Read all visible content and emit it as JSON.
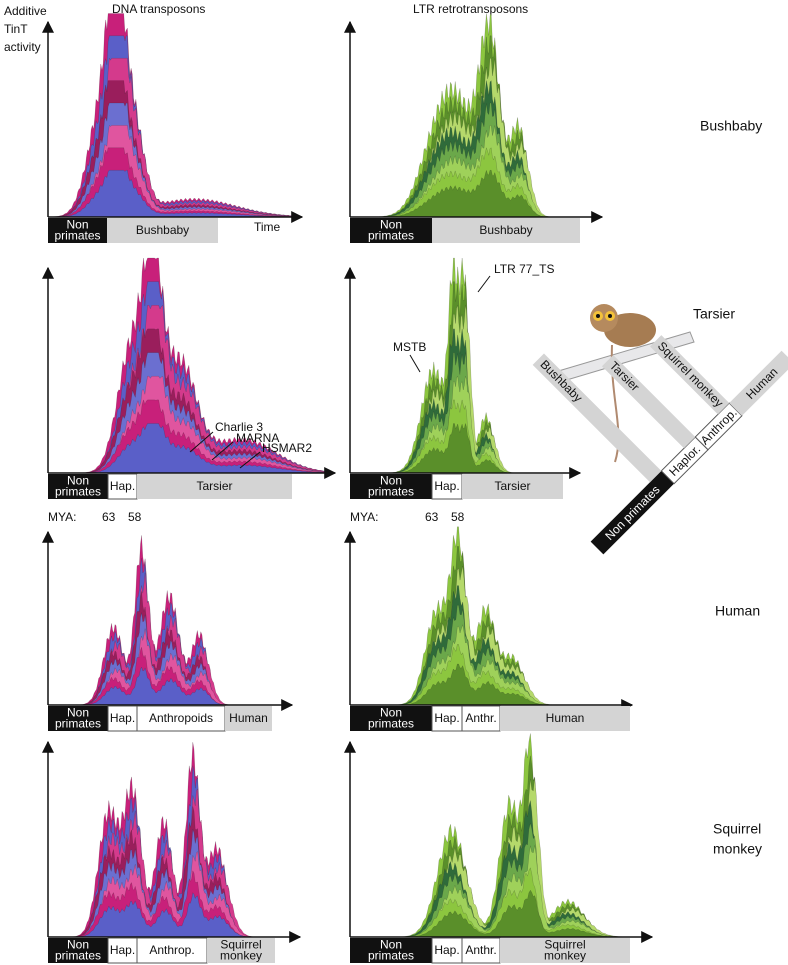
{
  "y_axis_label": [
    "Additive",
    "TinT",
    "activity"
  ],
  "column_titles": [
    "DNA transposons",
    "LTR retrotransposons"
  ],
  "x_axis_label": "Time",
  "rows": [
    {
      "species": [
        "Bushbaby"
      ],
      "dna": [
        [
          "Non",
          "primates"
        ],
        [
          "Bushbaby"
        ]
      ],
      "ltr": [
        [
          "Non",
          "primates"
        ],
        [
          "Bushbaby"
        ]
      ]
    },
    {
      "species": [
        "Tarsier"
      ],
      "dna": [
        [
          "Non",
          "primates"
        ],
        [
          "Hap."
        ],
        [
          "Tarsier"
        ]
      ],
      "ltr": [
        [
          "Non",
          "primates"
        ],
        [
          "Hap."
        ],
        [
          "Tarsier"
        ]
      ]
    },
    {
      "species": [
        "Human"
      ],
      "dna": [
        [
          "Non",
          "primates"
        ],
        [
          "Hap."
        ],
        [
          "Anthropoids"
        ],
        [
          "Human"
        ]
      ],
      "ltr": [
        [
          "Non",
          "primates"
        ],
        [
          "Hap."
        ],
        [
          "Anthr."
        ],
        [
          "Human"
        ]
      ]
    },
    {
      "species": [
        "Squirrel",
        "monkey"
      ],
      "dna": [
        [
          "Non",
          "primates"
        ],
        [
          "Hap."
        ],
        [
          "Anthrop."
        ],
        [
          "Squirrel",
          "monkey"
        ]
      ],
      "ltr": [
        [
          "Non",
          "primates"
        ],
        [
          "Hap."
        ],
        [
          "Anthr."
        ],
        [
          "Squirrel",
          "monkey"
        ]
      ]
    }
  ],
  "dna_annotations": [
    "Charlie 3",
    "MARNA",
    "HSMAR2"
  ],
  "ltr_annotations": [
    "LTR 77_TS",
    "MSTB"
  ],
  "mya_label": "MYA:",
  "mya_ticks": [
    63,
    58
  ],
  "tree": {
    "nodes": [
      "Non primates",
      "Haplor.",
      "Anthrop."
    ],
    "leaves": [
      "Bushbaby",
      "Tarsier",
      "Squirrel monkey",
      "Human"
    ]
  }
}
